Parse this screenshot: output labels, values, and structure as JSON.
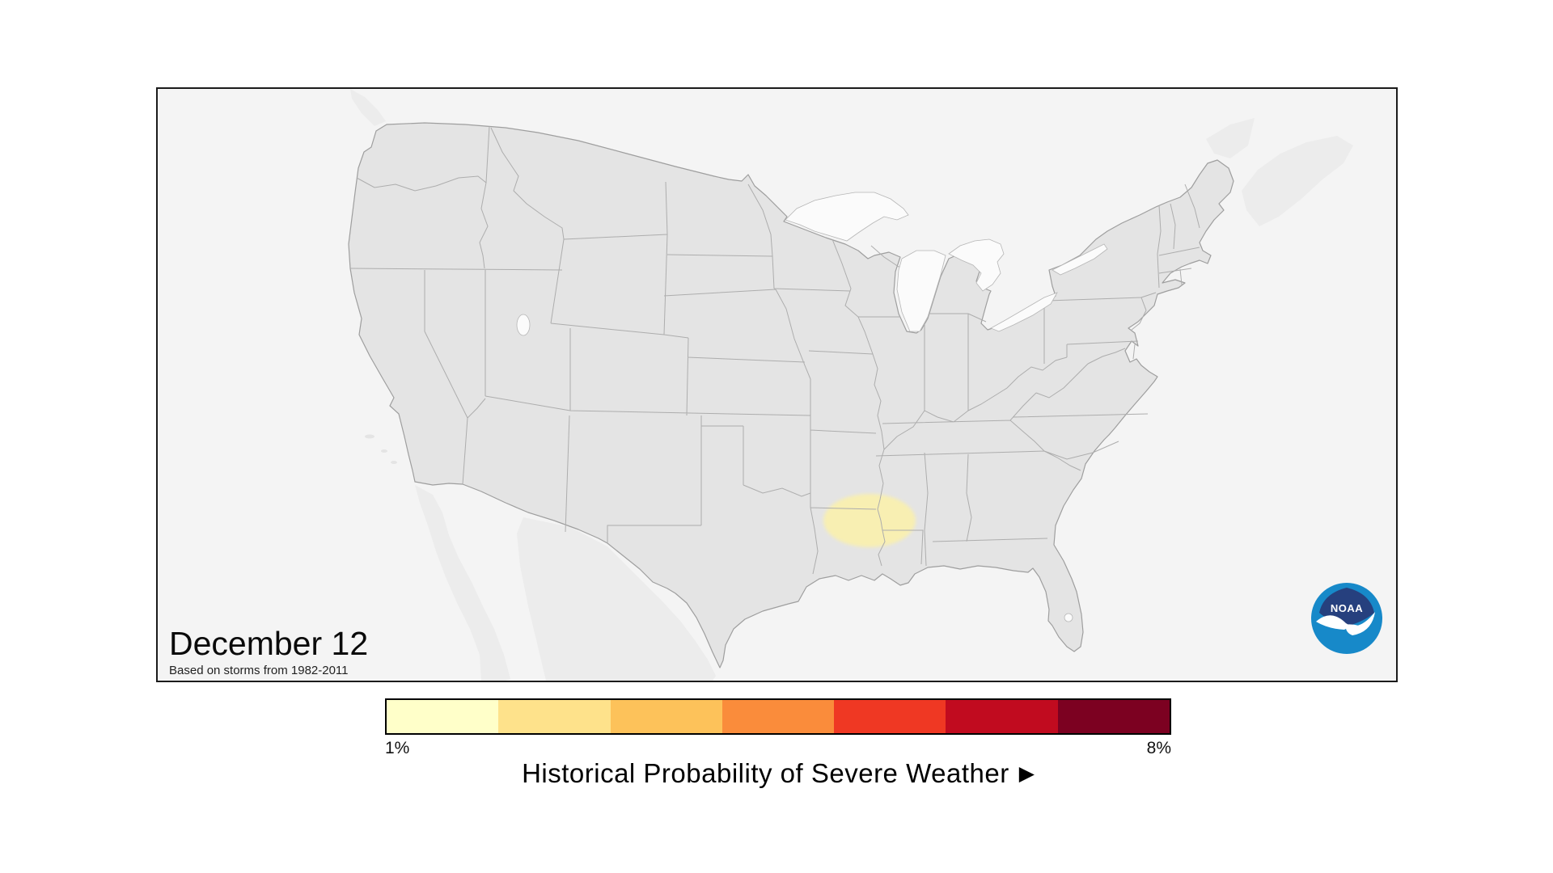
{
  "map_panel": {
    "date_label": "December 12",
    "attribution": "Based on storms from 1982-2011",
    "background": "#f4f4f4",
    "land_color": "#e4e4e4",
    "land_edge_color": "#9e9e9e",
    "state_border_color": "#adadad",
    "foreign_land_color": "#ececec",
    "lake_color": "#fbfbfb",
    "lake_edge_color": "#b6b6b6",
    "probability_region": {
      "description": "Historical severe weather probability area (~1-2%) centered on the Louisiana / Arkansas / Mississippi border region",
      "color": "#f8efb2"
    },
    "noaa_logo": {
      "text": "NOAA",
      "navy": "#26407e",
      "blue": "#1789c9",
      "white": "#ffffff"
    }
  },
  "legend": {
    "min_label": "1%",
    "max_label": "8%",
    "title": "Historical Probability of Severe Weather",
    "arrow": "▶",
    "colors": [
      "#ffffc9",
      "#fee28b",
      "#fdc25a",
      "#fa8c3b",
      "#ef3823",
      "#c10b1f",
      "#7c0121"
    ]
  },
  "map_data": {
    "type": "probability-map",
    "date": "December 12",
    "source_period": "1982-2011",
    "scale_min_percent": 1,
    "scale_max_percent": 8,
    "highlighted_region": {
      "states": [
        "Louisiana",
        "Arkansas",
        "Mississippi"
      ],
      "approx_probability_percent": 1.5
    }
  }
}
